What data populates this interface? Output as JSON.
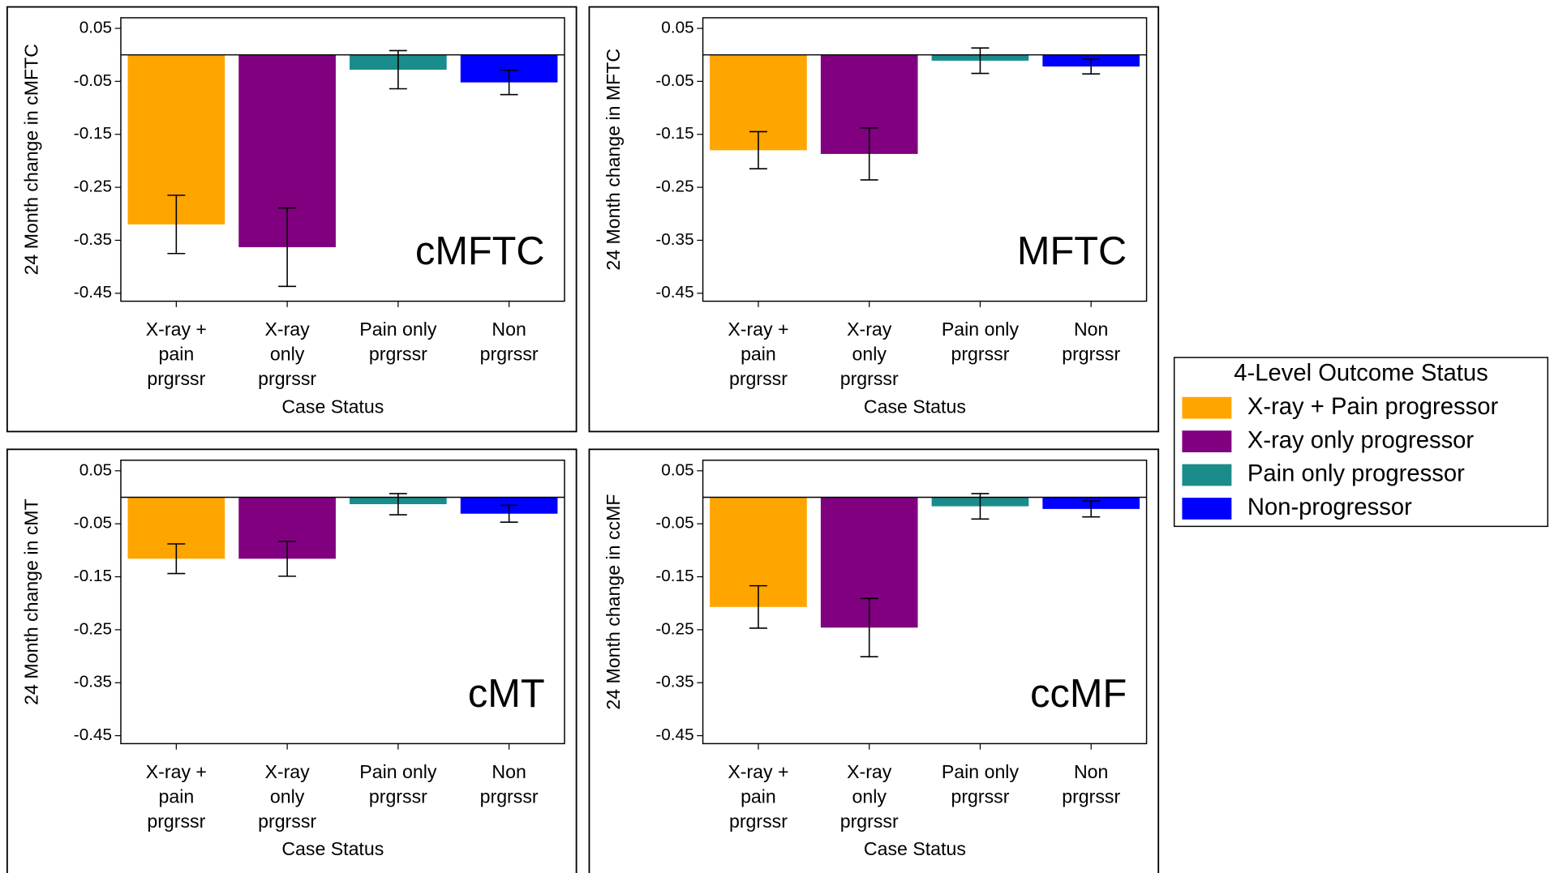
{
  "chart_data": [
    {
      "type": "bar",
      "annotation": "cMFTC",
      "ylabel": "24 Month change in cMFTC",
      "xlabel": "Case Status",
      "categories": [
        [
          "X-ray +",
          "pain",
          "prgrssr"
        ],
        [
          "X-ray",
          "only",
          "prgrssr"
        ],
        [
          "Pain only",
          "prgrssr"
        ],
        [
          "Non",
          "prgrssr"
        ]
      ],
      "values": [
        -0.32,
        -0.363,
        -0.028,
        -0.052
      ],
      "errors": [
        0.055,
        0.074,
        0.036,
        0.023
      ],
      "colors": [
        "#ffa500",
        "#800080",
        "#1a8c8c",
        "#0000ff"
      ],
      "ylim": [
        -0.465,
        0.07
      ],
      "yticks": [
        0.05,
        -0.05,
        -0.15,
        -0.25,
        -0.35,
        -0.45
      ]
    },
    {
      "type": "bar",
      "annotation": "MFTC",
      "ylabel": "24 Month change in MFTC",
      "xlabel": "Case Status",
      "categories": [
        [
          "X-ray +",
          "pain",
          "prgrssr"
        ],
        [
          "X-ray",
          "only",
          "prgrssr"
        ],
        [
          "Pain only",
          "prgrssr"
        ],
        [
          "Non",
          "prgrssr"
        ]
      ],
      "values": [
        -0.18,
        -0.187,
        -0.011,
        -0.022
      ],
      "errors": [
        0.035,
        0.049,
        0.024,
        0.014
      ],
      "colors": [
        "#ffa500",
        "#800080",
        "#1a8c8c",
        "#0000ff"
      ],
      "ylim": [
        -0.465,
        0.07
      ],
      "yticks": [
        0.05,
        -0.05,
        -0.15,
        -0.25,
        -0.35,
        -0.45
      ]
    },
    {
      "type": "bar",
      "annotation": "cMT",
      "ylabel": "24 Month change in cMT",
      "xlabel": "Case Status",
      "categories": [
        [
          "X-ray +",
          "pain",
          "prgrssr"
        ],
        [
          "X-ray",
          "only",
          "prgrssr"
        ],
        [
          "Pain only",
          "prgrssr"
        ],
        [
          "Non",
          "prgrssr"
        ]
      ],
      "values": [
        -0.116,
        -0.116,
        -0.013,
        -0.031
      ],
      "errors": [
        0.028,
        0.033,
        0.02,
        0.016
      ],
      "colors": [
        "#ffa500",
        "#800080",
        "#1a8c8c",
        "#0000ff"
      ],
      "ylim": [
        -0.465,
        0.07
      ],
      "yticks": [
        0.05,
        -0.05,
        -0.15,
        -0.25,
        -0.35,
        -0.45
      ]
    },
    {
      "type": "bar",
      "annotation": "ccMF",
      "ylabel": "24 Month change in ccMF",
      "xlabel": "Case Status",
      "categories": [
        [
          "X-ray +",
          "pain",
          "prgrssr"
        ],
        [
          "X-ray",
          "only",
          "prgrssr"
        ],
        [
          "Pain only",
          "prgrssr"
        ],
        [
          "Non",
          "prgrssr"
        ]
      ],
      "values": [
        -0.207,
        -0.246,
        -0.017,
        -0.022
      ],
      "errors": [
        0.04,
        0.055,
        0.024,
        0.015
      ],
      "colors": [
        "#ffa500",
        "#800080",
        "#1a8c8c",
        "#0000ff"
      ],
      "ylim": [
        -0.465,
        0.07
      ],
      "yticks": [
        0.05,
        -0.05,
        -0.15,
        -0.25,
        -0.35,
        -0.45
      ]
    }
  ],
  "legend": {
    "title": "4-Level Outcome Status",
    "items": [
      {
        "name": "X-ray + Pain progressor",
        "color": "#ffa500"
      },
      {
        "name": "X-ray only progressor",
        "color": "#800080"
      },
      {
        "name": "Pain only progressor",
        "color": "#1a8c8c"
      },
      {
        "name": "Non-progressor",
        "color": "#0000ff"
      }
    ]
  }
}
